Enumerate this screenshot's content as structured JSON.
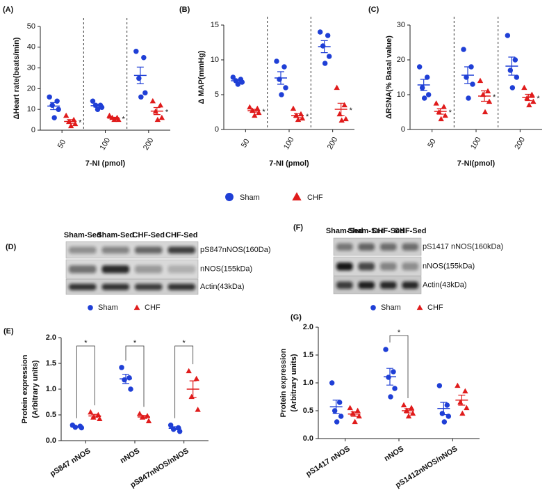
{
  "chart_data": [
    {
      "type": "strip",
      "label": "(A)",
      "ylabel": "ΔHeart rate(beats/min)",
      "xlabel": "7-NI (pmol)",
      "categories": [
        "50",
        "100",
        "200"
      ],
      "ylim": [
        0,
        50
      ],
      "yticks": [
        0,
        10,
        20,
        30,
        40,
        50
      ],
      "series": [
        {
          "name": "Sham",
          "color": "#1f3fd6",
          "marker": "circle",
          "values": [
            [
              16,
              14,
              12,
              10,
              6
            ],
            [
              14,
              12,
              12,
              11,
              10
            ],
            [
              38,
              35,
              25,
              18,
              16
            ]
          ],
          "mean": [
            11.6,
            11.8,
            26.4
          ],
          "sem": [
            1.7,
            0.7,
            4.0
          ]
        },
        {
          "name": "CHF",
          "color": "#e01b1b",
          "marker": "triangle",
          "values": [
            [
              7,
              5,
              4,
              3,
              2
            ],
            [
              7,
              6,
              6,
              5,
              5
            ],
            [
              14,
              12,
              9,
              6,
              5
            ]
          ],
          "mean": [
            4.2,
            5.8,
            9.2
          ],
          "sem": [
            0.9,
            0.4,
            1.7
          ]
        }
      ],
      "significance": [
        "*",
        "*",
        "*"
      ]
    },
    {
      "type": "strip",
      "label": "(B)",
      "ylabel": "Δ MAP(mmHg)",
      "xlabel": "7-NI (pmol)",
      "categories": [
        "50",
        "100",
        "200"
      ],
      "ylim": [
        0,
        15
      ],
      "yticks": [
        0,
        5,
        10,
        15
      ],
      "series": [
        {
          "name": "Sham",
          "color": "#1f3fd6",
          "marker": "circle",
          "values": [
            [
              7.5,
              7.2,
              7.0,
              6.8,
              6.5
            ],
            [
              9.8,
              9.0,
              7.2,
              6.0,
              5.0
            ],
            [
              14,
              13.5,
              12,
              10.5,
              9.5
            ]
          ],
          "mean": [
            7.0,
            7.4,
            11.9
          ],
          "sem": [
            0.17,
            0.9,
            0.86
          ]
        },
        {
          "name": "CHF",
          "color": "#e01b1b",
          "marker": "triangle",
          "values": [
            [
              3.2,
              3.0,
              2.7,
              2.4,
              2.0
            ],
            [
              3.0,
              2.2,
              2.0,
              1.6,
              1.4
            ],
            [
              6,
              3.5,
              2.2,
              1.5,
              1.3
            ]
          ],
          "mean": [
            2.7,
            2.0,
            2.9
          ],
          "sem": [
            0.2,
            0.28,
            0.87
          ]
        }
      ],
      "significance": [
        "*",
        "*",
        "*"
      ]
    },
    {
      "type": "strip",
      "label": "(C)",
      "ylabel": "ΔRSNA(% Basal value)",
      "xlabel": "7-NI(pmol)",
      "categories": [
        "50",
        "100",
        "200"
      ],
      "ylim": [
        0,
        30
      ],
      "yticks": [
        0,
        10,
        20,
        30
      ],
      "series": [
        {
          "name": "Sham",
          "color": "#1f3fd6",
          "marker": "circle",
          "values": [
            [
              18,
              15,
              12,
              10,
              9
            ],
            [
              23,
              18,
              15,
              13,
              9
            ],
            [
              27,
              20,
              17,
              15,
              12
            ]
          ],
          "mean": [
            12.8,
            15.6,
            18.2
          ],
          "sem": [
            1.6,
            2.4,
            2.6
          ]
        },
        {
          "name": "CHF",
          "color": "#e01b1b",
          "marker": "triangle",
          "values": [
            [
              7.5,
              6.5,
              5,
              4,
              3
            ],
            [
              14,
              11,
              10,
              8,
              5
            ],
            [
              12,
              10,
              9,
              8,
              7
            ]
          ],
          "mean": [
            5.2,
            9.6,
            9.2
          ],
          "sem": [
            0.8,
            1.5,
            0.9
          ]
        }
      ],
      "significance": [
        "*",
        "*",
        "*"
      ]
    },
    {
      "type": "strip",
      "label": "(E)",
      "ylabel": [
        "Protein expression",
        "(Arbitrary units)"
      ],
      "categories": [
        "pS847 nNOS",
        "nNOS",
        "pS847nNOS/nNOS"
      ],
      "ylim": [
        0,
        2
      ],
      "yticks": [
        {
          "value": 0,
          "label": "0.0"
        },
        0.5,
        {
          "value": 1,
          "label": "1.0"
        },
        1.5,
        {
          "value": 2,
          "label": "2.0"
        }
      ],
      "series": [
        {
          "name": "Sham",
          "color": "#1f3fd6",
          "marker": "circle",
          "values": [
            [
              0.3,
              0.28,
              0.26,
              0.25
            ],
            [
              1.42,
              1.22,
              1.18,
              1.0
            ],
            [
              0.3,
              0.25,
              0.22,
              0.18
            ]
          ],
          "mean": [
            0.27,
            1.2,
            0.24
          ],
          "sem": [
            0.01,
            0.09,
            0.03
          ]
        },
        {
          "name": "CHF",
          "color": "#e01b1b",
          "marker": "triangle",
          "values": [
            [
              0.55,
              0.5,
              0.45,
              0.42
            ],
            [
              0.52,
              0.48,
              0.45,
              0.38
            ],
            [
              1.35,
              1.2,
              0.85,
              0.6
            ]
          ],
          "mean": [
            0.48,
            0.46,
            1.0
          ],
          "sem": [
            0.03,
            0.03,
            0.16
          ]
        }
      ],
      "brackets": [
        "*",
        "*",
        "*"
      ]
    },
    {
      "type": "strip",
      "label": "(G)",
      "ylabel": [
        "Protein expression",
        "(Arbitrary units)"
      ],
      "categories": [
        "pS1417 nNOS",
        "nNOS",
        "pS1412nNOS/nNOS"
      ],
      "ylim": [
        0,
        2
      ],
      "yticks": [
        {
          "value": 0,
          "label": "0.0"
        },
        0.5,
        {
          "value": 1,
          "label": "1.0"
        },
        1.5,
        {
          "value": 2,
          "label": "2.0"
        }
      ],
      "series": [
        {
          "name": "Sham",
          "color": "#1f3fd6",
          "marker": "circle",
          "values": [
            [
              1.0,
              0.65,
              0.5,
              0.4,
              0.3
            ],
            [
              1.6,
              1.2,
              1.1,
              0.9,
              0.75
            ],
            [
              0.95,
              0.6,
              0.45,
              0.4,
              0.3
            ]
          ],
          "mean": [
            0.57,
            1.11,
            0.54
          ],
          "sem": [
            0.12,
            0.15,
            0.11
          ]
        },
        {
          "name": "CHF",
          "color": "#e01b1b",
          "marker": "triangle",
          "values": [
            [
              0.55,
              0.5,
              0.45,
              0.4,
              0.3
            ],
            [
              0.6,
              0.55,
              0.5,
              0.45,
              0.4
            ],
            [
              0.95,
              0.85,
              0.65,
              0.55,
              0.45
            ]
          ],
          "mean": [
            0.44,
            0.5,
            0.69
          ],
          "sem": [
            0.04,
            0.04,
            0.09
          ]
        }
      ],
      "brackets": [
        null,
        "*",
        null
      ]
    }
  ],
  "blots": [
    {
      "label": "(D)",
      "lanes": [
        "Sham-Sed",
        "Sham-Sed",
        "CHF-Sed",
        "CHF-Sed"
      ],
      "bands": [
        "pS847nNOS(160Da)",
        "nNOS(155kDa)",
        "Actin(43kDa)"
      ]
    },
    {
      "label": "(F)",
      "lanes": [
        "Sham-Sed",
        "Sham-Sed",
        "CHF-Sed",
        "CHF-Sed"
      ],
      "bands": [
        "pS1417 nNOS(160kDa)",
        "nNOS(155kDa)",
        "Actin(43kDa)"
      ]
    }
  ]
}
